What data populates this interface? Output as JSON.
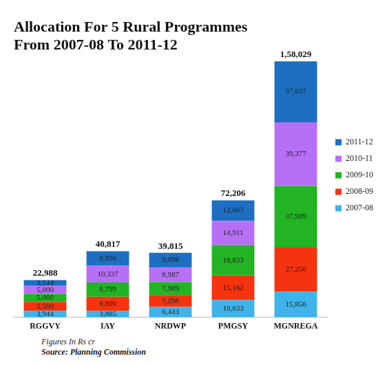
{
  "chart_data": {
    "type": "bar",
    "title": [
      "Allocation For 5 Rural Programmes",
      "From 2007-08 To 2011-12"
    ],
    "categories": [
      "RGGVY",
      "IAY",
      "NRDWP",
      "PMGSY",
      "MGNREGA"
    ],
    "series": [
      {
        "name": "2007-08",
        "color": "#3fb3ea",
        "values": [
          3944,
          3885,
          6443,
          10633,
          15856
        ],
        "value_labels": [
          "3,944",
          "3,885",
          "6,443",
          "10,633",
          "15,856"
        ]
      },
      {
        "name": "2008-09",
        "color": "#f5330f",
        "values": [
          5500,
          8800,
          7298,
          15162,
          27250
        ],
        "value_labels": [
          "5,500",
          "8,800",
          "7,298",
          "15,162",
          "27,250"
        ]
      },
      {
        "name": "2009-10",
        "color": "#22b422",
        "values": [
          5000,
          8799,
          7989,
          18833,
          37909
        ],
        "value_labels": [
          "5,000",
          "8,799",
          "7,989",
          "18,833",
          "37,909"
        ]
      },
      {
        "name": "2010-11",
        "color": "#b670f5",
        "values": [
          5000,
          10337,
          8987,
          14911,
          39377
        ],
        "value_labels": [
          "5,000",
          "10,337",
          "8,987",
          "14,911",
          "39,377"
        ]
      },
      {
        "name": "2011-12",
        "color": "#1c6fc1",
        "values": [
          3544,
          8996,
          9098,
          12667,
          37637
        ],
        "value_labels": [
          "3,544",
          "8,996",
          "9,098",
          "12,667",
          "37,637"
        ]
      }
    ],
    "totals": [
      22988,
      40817,
      39815,
      72206,
      158029
    ],
    "total_labels": [
      "22,988",
      "40,817",
      "39,815",
      "72,206",
      "1,58,029"
    ],
    "annotations": [
      "Figures In Rs cr",
      "Source: Planning Commission"
    ],
    "stacked": true,
    "data_labels": true,
    "tick_labels": "x",
    "grid": false,
    "legend": "right"
  }
}
